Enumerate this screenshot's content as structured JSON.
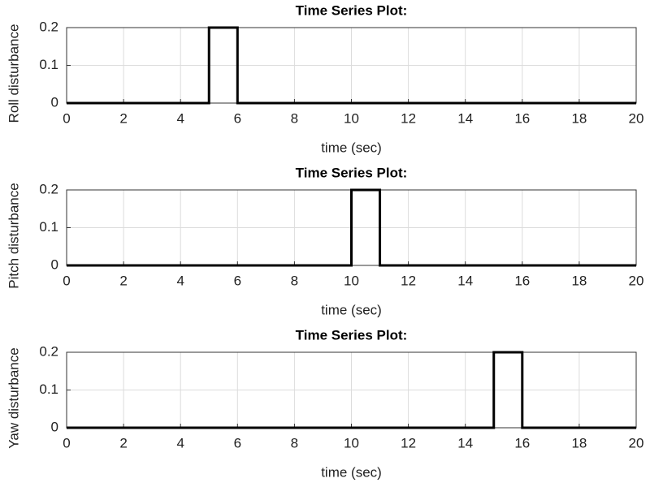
{
  "chart_data": [
    {
      "type": "line",
      "title": "Time Series Plot:",
      "x_label": "time (sec)",
      "y_label": "Roll disturbance",
      "x": [
        0,
        5,
        5,
        6,
        6,
        20
      ],
      "values": [
        0,
        0,
        0.2,
        0.2,
        0,
        0
      ],
      "color": "#000000",
      "xlim": [
        0,
        20
      ],
      "xticks": [
        0,
        2,
        4,
        6,
        8,
        10,
        12,
        14,
        16,
        18,
        20
      ],
      "ylim": [
        0,
        0.2
      ],
      "yticks": [
        0,
        0.1,
        0.2
      ],
      "grid": true
    },
    {
      "type": "line",
      "title": "Time Series Plot:",
      "x_label": "time (sec)",
      "y_label": "Pitch disturbance",
      "x": [
        0,
        10,
        10,
        11,
        11,
        20
      ],
      "values": [
        0,
        0,
        0.2,
        0.2,
        0,
        0
      ],
      "color": "#000000",
      "xlim": [
        0,
        20
      ],
      "xticks": [
        0,
        2,
        4,
        6,
        8,
        10,
        12,
        14,
        16,
        18,
        20
      ],
      "ylim": [
        0,
        0.2
      ],
      "yticks": [
        0,
        0.1,
        0.2
      ],
      "grid": true
    },
    {
      "type": "line",
      "title": "Time Series Plot:",
      "x_label": "time (sec)",
      "y_label": "Yaw disturbance",
      "x": [
        0,
        15,
        15,
        16,
        16,
        20
      ],
      "values": [
        0,
        0,
        0.2,
        0.2,
        0,
        0
      ],
      "color": "#000000",
      "xlim": [
        0,
        20
      ],
      "xticks": [
        0,
        2,
        4,
        6,
        8,
        10,
        12,
        14,
        16,
        18,
        20
      ],
      "ylim": [
        0,
        0.2
      ],
      "yticks": [
        0,
        0.1,
        0.2
      ],
      "grid": true
    }
  ]
}
